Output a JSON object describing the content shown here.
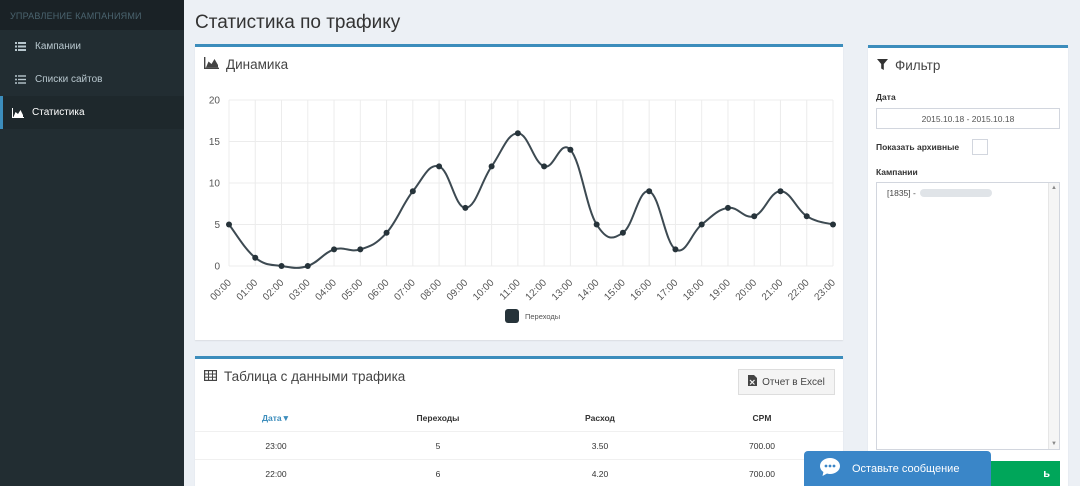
{
  "sidebar": {
    "header": "УПРАВЛЕНИЕ КАМПАНИЯМИ",
    "items": [
      {
        "label": "Кампании",
        "icon": "list-icon"
      },
      {
        "label": "Списки сайтов",
        "icon": "list-ul-icon"
      },
      {
        "label": "Статистика",
        "icon": "area-chart-icon"
      }
    ]
  },
  "page": {
    "title": "Статистика по трафику"
  },
  "chart_box": {
    "title": "Динамика"
  },
  "chart_data": {
    "type": "line",
    "categories": [
      "00:00",
      "01:00",
      "02:00",
      "03:00",
      "04:00",
      "05:00",
      "06:00",
      "07:00",
      "08:00",
      "09:00",
      "10:00",
      "11:00",
      "12:00",
      "13:00",
      "14:00",
      "15:00",
      "16:00",
      "17:00",
      "18:00",
      "19:00",
      "20:00",
      "21:00",
      "22:00",
      "23:00"
    ],
    "series": [
      {
        "name": "Переходы",
        "values": [
          5,
          1,
          0,
          0,
          2,
          2,
          4,
          9,
          12,
          7,
          12,
          16,
          12,
          14,
          5,
          4,
          9,
          2,
          5,
          7,
          6,
          9,
          6,
          5
        ]
      }
    ],
    "ylim": [
      0,
      20
    ],
    "yticks": [
      "0",
      "5",
      "10",
      "15",
      "20"
    ],
    "grid": true,
    "legend": "bottom",
    "line_color": "#3d4a52",
    "point_color": "#26333a"
  },
  "table_box": {
    "title": "Таблица с данными трафика",
    "export_label": "Отчет в Excel",
    "columns": [
      "Дата▼",
      "Переходы",
      "Расход",
      "CPM"
    ],
    "rows": [
      [
        "23:00",
        "5",
        "3.50",
        "700.00"
      ],
      [
        "22:00",
        "6",
        "4.20",
        "700.00"
      ]
    ]
  },
  "filter": {
    "title": "Фильтр",
    "date_label": "Дата",
    "date_value": "2015.10.18 - 2015.10.18",
    "archive_label": "Показать архивные",
    "campaigns_label": "Кампании",
    "campaign_option": "[1835] -",
    "apply_label": "ь"
  },
  "chat": {
    "label": "Оставьте сообщение"
  },
  "colors": {
    "sidebar_bg": "#222d32",
    "accent": "#3c8dbc",
    "button_green": "#00a65a",
    "chat_blue": "#3a86c8"
  }
}
